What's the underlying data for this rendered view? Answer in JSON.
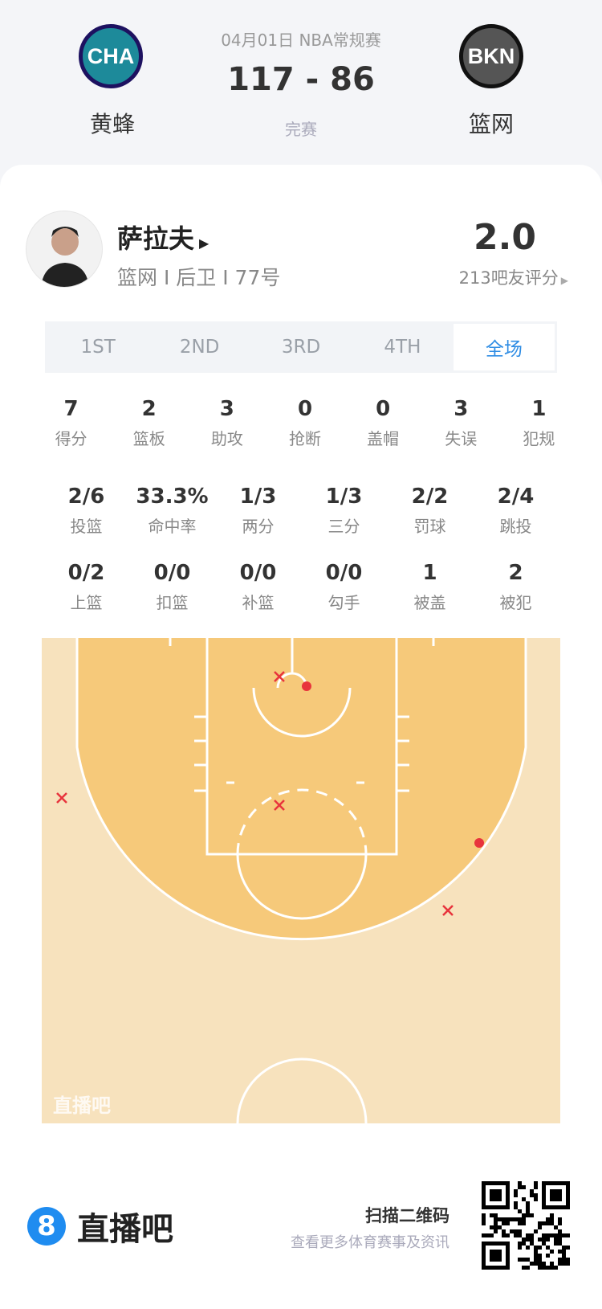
{
  "match": {
    "date_league": "04月01日 NBA常规赛",
    "score": "117 - 86",
    "status": "完赛",
    "home": {
      "abbr": "CHA",
      "name": "黄蜂"
    },
    "away": {
      "abbr": "BKN",
      "name": "篮网"
    }
  },
  "player": {
    "name": "萨拉夫",
    "info": "篮网 I 后卫 I 77号",
    "rating": "2.0",
    "rating_count": "213吧友评分"
  },
  "tabs": [
    "1ST",
    "2ND",
    "3RD",
    "4TH",
    "全场"
  ],
  "active_tab": "全场",
  "stats_row1": [
    {
      "v": "7",
      "l": "得分"
    },
    {
      "v": "2",
      "l": "篮板"
    },
    {
      "v": "3",
      "l": "助攻"
    },
    {
      "v": "0",
      "l": "抢断"
    },
    {
      "v": "0",
      "l": "盖帽"
    },
    {
      "v": "3",
      "l": "失误"
    },
    {
      "v": "1",
      "l": "犯规"
    }
  ],
  "stats_row2": [
    {
      "v": "2/6",
      "l": "投篮"
    },
    {
      "v": "33.3%",
      "l": "命中率"
    },
    {
      "v": "1/3",
      "l": "两分"
    },
    {
      "v": "1/3",
      "l": "三分"
    },
    {
      "v": "2/2",
      "l": "罚球"
    },
    {
      "v": "2/4",
      "l": "跳投"
    }
  ],
  "stats_row3": [
    {
      "v": "0/2",
      "l": "上篮"
    },
    {
      "v": "0/0",
      "l": "扣篮"
    },
    {
      "v": "0/0",
      "l": "补篮"
    },
    {
      "v": "0/0",
      "l": "勾手"
    },
    {
      "v": "1",
      "l": "被盖"
    },
    {
      "v": "2",
      "l": "被犯"
    }
  ],
  "court": {
    "watermark": "直播吧",
    "made_color": "#e8343c",
    "miss_color": "#e8343c",
    "shots": [
      {
        "result": "miss"
      },
      {
        "result": "made"
      },
      {
        "result": "miss"
      },
      {
        "result": "miss"
      },
      {
        "result": "made"
      },
      {
        "result": "miss"
      }
    ]
  },
  "footer": {
    "brand": "直播吧",
    "logo_digit": "8",
    "scan": "扫描二维码",
    "sub": "查看更多体育赛事及资讯"
  }
}
